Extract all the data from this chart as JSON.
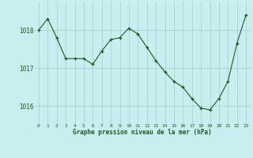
{
  "x": [
    0,
    1,
    2,
    3,
    4,
    5,
    6,
    7,
    8,
    9,
    10,
    11,
    12,
    13,
    14,
    15,
    16,
    17,
    18,
    19,
    20,
    21,
    22,
    23
  ],
  "y": [
    1018.0,
    1018.3,
    1017.8,
    1017.25,
    1017.25,
    1017.25,
    1017.1,
    1017.45,
    1017.75,
    1017.8,
    1018.05,
    1017.9,
    1017.55,
    1017.2,
    1016.9,
    1016.65,
    1016.5,
    1016.2,
    1015.95,
    1015.9,
    1016.2,
    1016.65,
    1017.65,
    1018.4
  ],
  "line_color": "#1a5c1a",
  "marker_color": "#1a5c1a",
  "bg_color": "#c8eef0",
  "grid_color": "#9ecfcc",
  "xlabel": "Graphe pression niveau de la mer (hPa)",
  "xlabel_color": "#1a5c1a",
  "tick_color": "#1a5c1a",
  "ylim": [
    1015.55,
    1018.75
  ],
  "yticks": [
    1016,
    1017,
    1018
  ],
  "xlim": [
    -0.5,
    23.5
  ],
  "xticks": [
    0,
    1,
    2,
    3,
    4,
    5,
    6,
    7,
    8,
    9,
    10,
    11,
    12,
    13,
    14,
    15,
    16,
    17,
    18,
    19,
    20,
    21,
    22,
    23
  ]
}
